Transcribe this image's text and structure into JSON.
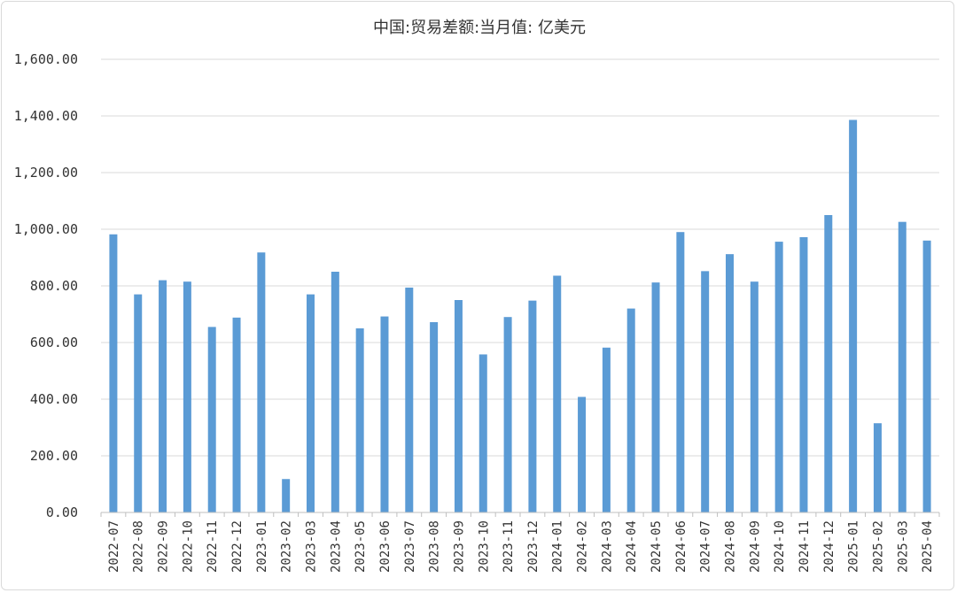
{
  "chart_data": {
    "type": "bar",
    "title": "中国:贸易差额:当月值: 亿美元",
    "xlabel": "",
    "ylabel": "",
    "ylim": [
      0,
      1600
    ],
    "yticks": [
      "0.00",
      "200.00",
      "400.00",
      "600.00",
      "800.00",
      "1,000.00",
      "1,200.00",
      "1,400.00",
      "1,600.00"
    ],
    "grid": true,
    "legend": "none",
    "bar_color": "#5b9bd5",
    "categories": [
      "2022-07",
      "2022-08",
      "2022-09",
      "2022-10",
      "2022-11",
      "2022-12",
      "2023-01",
      "2023-02",
      "2023-03",
      "2023-04",
      "2023-05",
      "2023-06",
      "2023-07",
      "2023-08",
      "2023-09",
      "2023-10",
      "2023-11",
      "2023-12",
      "2024-01",
      "2024-02",
      "2024-03",
      "2024-04",
      "2024-05",
      "2024-06",
      "2024-07",
      "2024-08",
      "2024-09",
      "2024-10",
      "2024-11",
      "2024-12",
      "2025-01",
      "2025-02",
      "2025-03",
      "2025-04"
    ],
    "values": [
      982,
      770,
      820,
      815,
      655,
      688,
      918,
      118,
      770,
      850,
      650,
      692,
      794,
      672,
      750,
      558,
      690,
      748,
      836,
      408,
      582,
      720,
      812,
      990,
      852,
      912,
      815,
      956,
      972,
      1050,
      1386,
      315,
      1026,
      960
    ]
  }
}
